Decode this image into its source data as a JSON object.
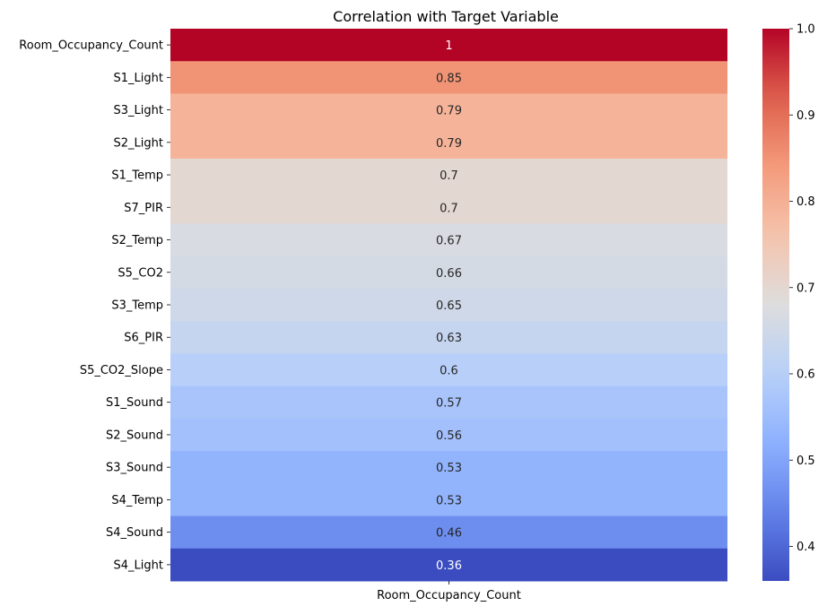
{
  "chart_data": {
    "type": "heatmap",
    "title": "Correlation with Target Variable",
    "x_categories": [
      "Room_Occupancy_Count"
    ],
    "y_categories": [
      "Room_Occupancy_Count",
      "S1_Light",
      "S3_Light",
      "S2_Light",
      "S1_Temp",
      "S7_PIR",
      "S2_Temp",
      "S5_CO2",
      "S3_Temp",
      "S6_PIR",
      "S5_CO2_Slope",
      "S1_Sound",
      "S2_Sound",
      "S3_Sound",
      "S4_Temp",
      "S4_Sound",
      "S4_Light"
    ],
    "values": [
      1,
      0.85,
      0.79,
      0.79,
      0.7,
      0.7,
      0.67,
      0.66,
      0.65,
      0.63,
      0.6,
      0.57,
      0.56,
      0.53,
      0.53,
      0.46,
      0.36
    ],
    "labels": [
      "1",
      "0.85",
      "0.79",
      "0.79",
      "0.7",
      "0.7",
      "0.67",
      "0.66",
      "0.65",
      "0.63",
      "0.6",
      "0.57",
      "0.56",
      "0.53",
      "0.53",
      "0.46",
      "0.36"
    ],
    "colormap": "coolwarm",
    "vmin": 0.36,
    "vmax": 1.0,
    "colorbar": {
      "ticks": [
        0.4,
        0.5,
        0.6,
        0.7,
        0.8,
        0.9,
        1.0
      ],
      "tick_labels": [
        "0.4",
        "0.5",
        "0.6",
        "0.7",
        "0.8",
        "0.9",
        "1.0"
      ]
    },
    "xlabel": "",
    "ylabel": ""
  }
}
